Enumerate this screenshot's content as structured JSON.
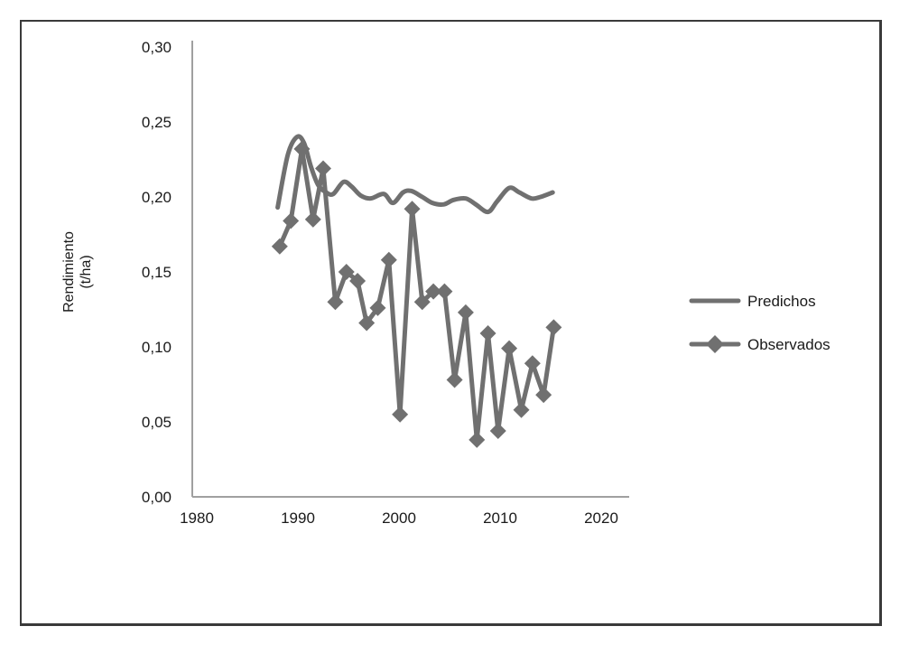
{
  "chart_data": {
    "type": "line",
    "title": "",
    "xlabel": "",
    "ylabel": "Rendimiento (t/ha)",
    "ylabel_lines": [
      "Rendimiento",
      "(t/ha)"
    ],
    "xlim": [
      1980,
      2020
    ],
    "ylim": [
      0.0,
      0.3
    ],
    "x_ticks": [
      "1980",
      "1990",
      "2000",
      "2010",
      "2020"
    ],
    "y_ticks": [
      "0,00",
      "0,05",
      "0,10",
      "0,15",
      "0,20",
      "0,25",
      "0,30"
    ],
    "grid": false,
    "legend_position": "right",
    "colors": {
      "series": "#707070",
      "axis": "#a0a0a0",
      "frame": "#3a3a3a",
      "text": "#1a1a1a"
    },
    "series": [
      {
        "name": "Predichos",
        "marker": "none",
        "smooth": true,
        "x": [
          1988.0,
          1989.0,
          1989.9,
          1990.6,
          1991.3,
          1992.0,
          1992.8,
          1993.5,
          1994.5,
          1995.3,
          1996.2,
          1997.2,
          1998.5,
          1999.4,
          2000.4,
          2001.2,
          2002.3,
          2003.3,
          2004.4,
          2005.4,
          2006.6,
          2007.6,
          2008.8,
          2009.7,
          2010.9,
          2011.9,
          2013.1,
          2014.0,
          2015.2
        ],
        "values": [
          0.193,
          0.228,
          0.24,
          0.236,
          0.22,
          0.208,
          0.203,
          0.202,
          0.21,
          0.207,
          0.201,
          0.199,
          0.202,
          0.196,
          0.203,
          0.204,
          0.2,
          0.196,
          0.195,
          0.198,
          0.199,
          0.195,
          0.19,
          0.197,
          0.206,
          0.203,
          0.199,
          0.2,
          0.203
        ]
      },
      {
        "name": "Observados",
        "marker": "diamond",
        "smooth": false,
        "x": [
          1988.2,
          1989.3,
          1990.4,
          1991.5,
          1992.5,
          1993.7,
          1994.8,
          1995.9,
          1996.8,
          1997.9,
          1999.0,
          2000.1,
          2001.3,
          2002.3,
          2003.4,
          2004.5,
          2005.5,
          2006.6,
          2007.7,
          2008.8,
          2009.8,
          2010.9,
          2012.1,
          2013.2,
          2014.3,
          2015.3
        ],
        "values": [
          0.167,
          0.184,
          0.232,
          0.185,
          0.219,
          0.13,
          0.15,
          0.144,
          0.116,
          0.126,
          0.158,
          0.055,
          0.192,
          0.13,
          0.137,
          0.137,
          0.078,
          0.123,
          0.038,
          0.109,
          0.044,
          0.099,
          0.058,
          0.089,
          0.068,
          0.113
        ]
      }
    ]
  },
  "legend": {
    "items": [
      {
        "label": "Predichos"
      },
      {
        "label": "Observados"
      }
    ]
  }
}
